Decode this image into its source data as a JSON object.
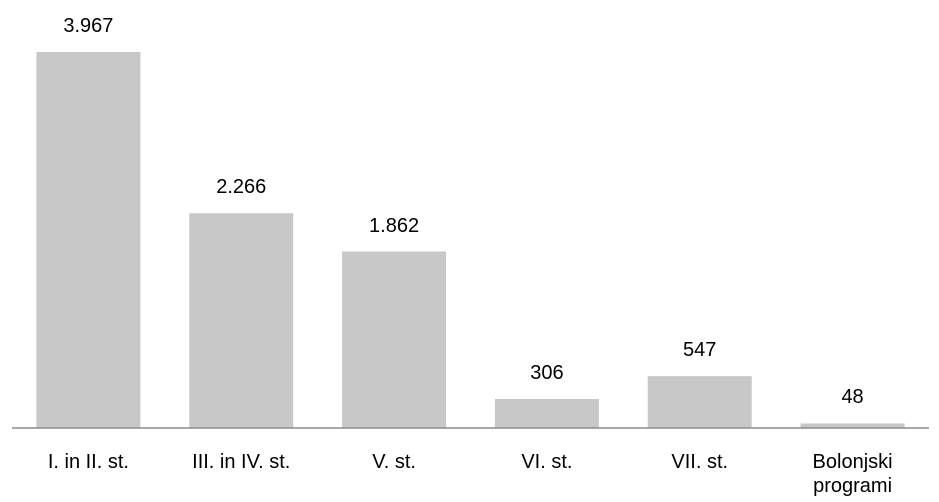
{
  "chart_data": {
    "type": "bar",
    "categories": [
      "I. in II. st.",
      "III. in IV. st.",
      "V. st.",
      "VI. st.",
      "VII. st.",
      "Bolonjski programi"
    ],
    "values": [
      3967,
      2266,
      1862,
      306,
      547,
      48
    ],
    "value_labels": [
      "3.967",
      "2.266",
      "1.862",
      "306",
      "547",
      "48"
    ],
    "color": "#c8c8c8"
  }
}
